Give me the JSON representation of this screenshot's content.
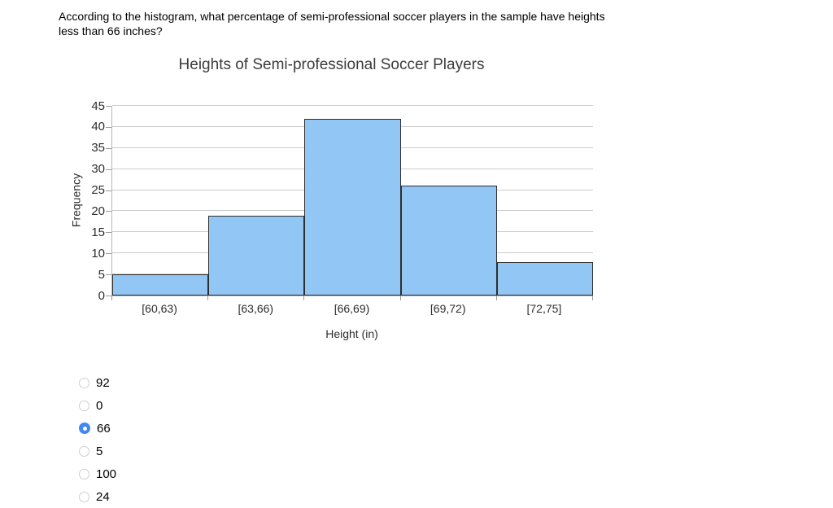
{
  "question": {
    "line1": "According to the histogram, what percentage of semi-professional soccer players in the sample have heights",
    "line2": "less than 66 inches?"
  },
  "chart_data": {
    "type": "bar",
    "subtype": "histogram",
    "title": "Heights of Semi-professional Soccer Players",
    "categories": [
      "[60,63)",
      "[63,66)",
      "[66,69)",
      "[69,72)",
      "[72,75]"
    ],
    "values": [
      5,
      19,
      42,
      26,
      8
    ],
    "xlabel": "Height (in)",
    "ylabel": "Frequency",
    "ylim": [
      0,
      45
    ],
    "ytick_step": 5,
    "grid": true,
    "bar_fill": "#92c6f4",
    "bar_border": "#2e2e2e",
    "gridline_color": "#cccccc"
  },
  "options": [
    {
      "label": "92",
      "selected": false
    },
    {
      "label": "0",
      "selected": false
    },
    {
      "label": "66",
      "selected": true
    },
    {
      "label": "5",
      "selected": false
    },
    {
      "label": "100",
      "selected": false
    },
    {
      "label": "24",
      "selected": false
    }
  ],
  "colors": {
    "radio_selected": "#4285f4",
    "radio_unselected_border": "#cfcfcf"
  }
}
